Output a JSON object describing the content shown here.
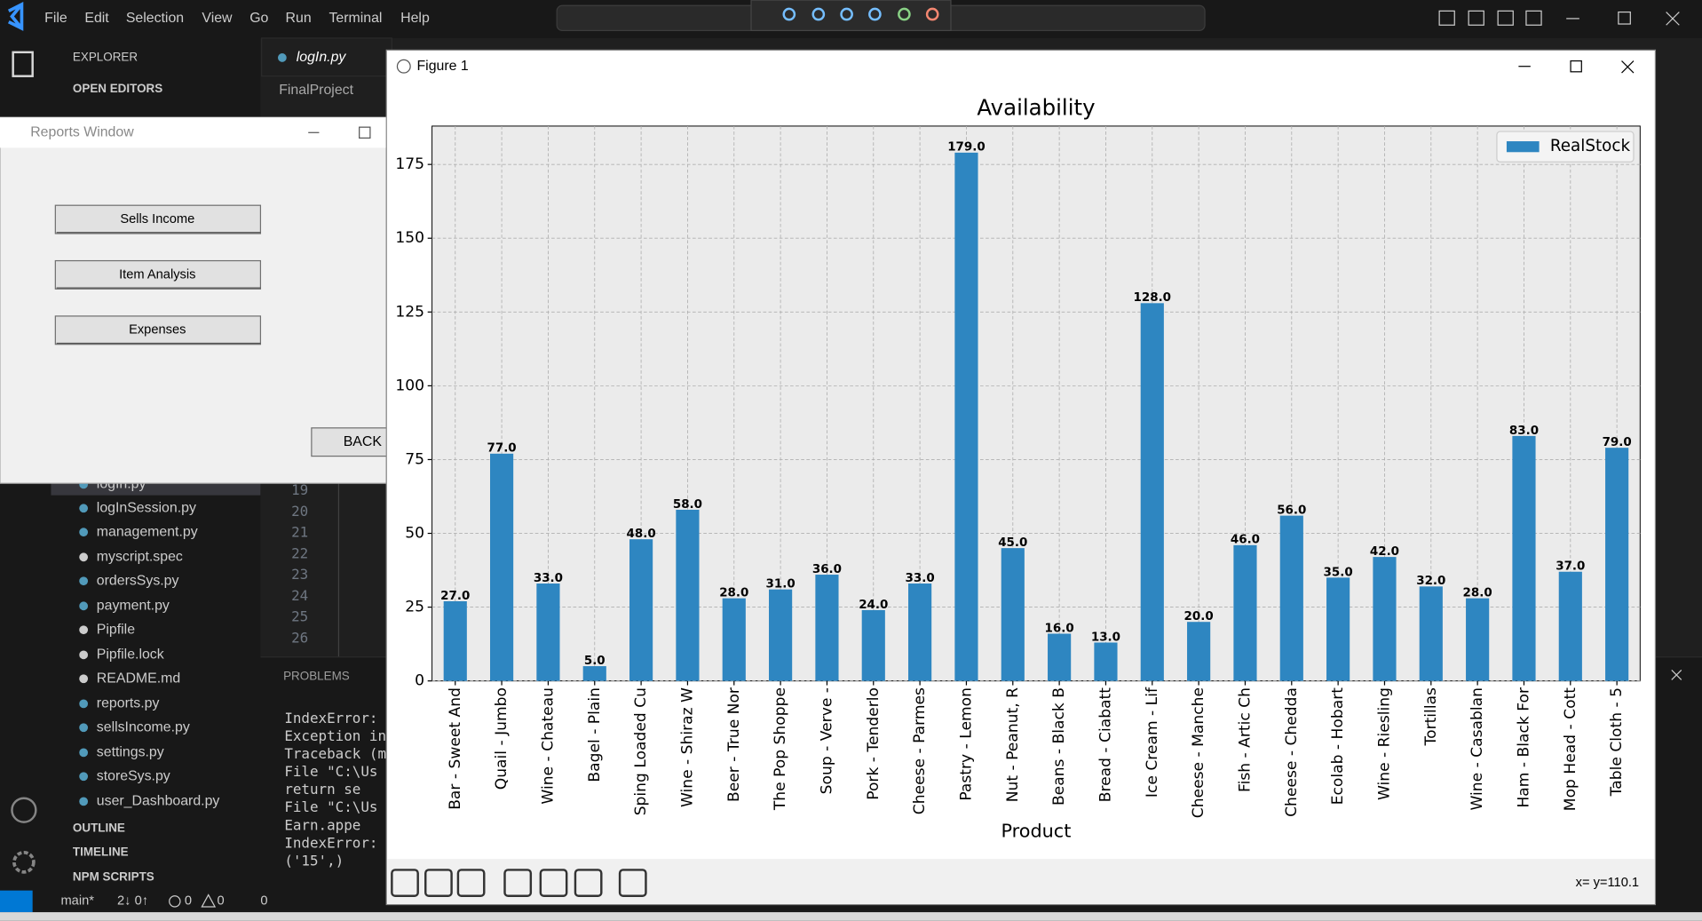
{
  "menu": [
    "File",
    "Edit",
    "Selection",
    "View",
    "Go",
    "Run",
    "Terminal",
    "Help"
  ],
  "explorer": {
    "title": "EXPLORER",
    "open_editors": "OPEN EDITORS",
    "files": [
      "logIn.py",
      "logInSession.py",
      "management.py",
      "myscript.spec",
      "ordersSys.py",
      "payment.py",
      "Pipfile",
      "Pipfile.lock",
      "README.md",
      "reports.py",
      "sellsIncome.py",
      "settings.py",
      "storeSys.py",
      "user_Dashboard.py"
    ],
    "sections": [
      "OUTLINE",
      "TIMELINE",
      "NPM SCRIPTS"
    ]
  },
  "editor": {
    "tab": "logIn.py",
    "breadcrumb": "FinalProject",
    "line_numbers": [
      19,
      20,
      21,
      22,
      23,
      24,
      25,
      26
    ]
  },
  "panel": {
    "tab": "PROBLEMS",
    "terminal": [
      "IndexError: l",
      "Exception in",
      "Traceback (mo",
      "  File \"C:\\Us",
      "    return se",
      "  File \"C:\\Us",
      "    Earn.appe",
      "IndexError: l",
      "('15',)"
    ]
  },
  "status_bar": {
    "branch": "main*",
    "sync": "2↓ 0↑",
    "errors": "0",
    "warnings": "0",
    "ports": "0"
  },
  "reports_window": {
    "title": "Reports Window",
    "buttons": [
      "Sells Income",
      "Item Analysis",
      "Expenses"
    ],
    "back": "BACK"
  },
  "figure_window": {
    "title": "Figure 1",
    "cursor": "x= y=110.1"
  },
  "chart_data": {
    "type": "bar",
    "title": "Availability",
    "x_label": "Product",
    "categories": [
      "Bar - Sweet And",
      "Quail - Jumbo",
      "Wine - Chateau",
      "Bagel - Plain",
      "Sping Loaded Cu",
      "Wine - Shiraz W",
      "Beer - True Nor",
      "The Pop Shoppe",
      "Soup - Verve -",
      "Pork - Tenderlo",
      "Cheese - Parmes",
      "Pastry - Lemon",
      "Nut - Peanut, R",
      "Beans - Black B",
      "Bread - Ciabatt",
      "Ice Cream - Lif",
      "Cheese - Manche",
      "Fish - Artic Ch",
      "Cheese - Chedda",
      "Ecolab - Hobart",
      "Wine - Riesling",
      "Tortillas",
      "Wine - Casablan",
      "Ham - Black For",
      "Mop Head - Cott",
      "Table Cloth - 5"
    ],
    "series": [
      {
        "name": "RealStock",
        "color": "#2e86c1",
        "values": [
          27,
          77,
          33,
          5,
          48,
          58,
          28,
          31,
          36,
          24,
          33,
          179,
          45,
          16,
          13,
          128,
          20,
          46,
          56,
          35,
          42,
          32,
          28,
          83,
          37,
          79
        ],
        "value_labels": [
          "27.0",
          "77.0",
          "33.0",
          "5.0",
          "48.0",
          "58.0",
          "28.0",
          "31.0",
          "36.0",
          "24.0",
          "33.0",
          "179.0",
          "45.0",
          "16.0",
          "13.0",
          "128.0",
          "20.0",
          "46.0",
          "56.0",
          "35.0",
          "42.0",
          "32.0",
          "28.0",
          "83.0",
          "37.0",
          "79.0"
        ]
      }
    ],
    "ylim": [
      0,
      188
    ],
    "yticks": [
      0,
      25,
      50,
      75,
      100,
      125,
      150,
      175
    ],
    "grid": true,
    "legend": "upper right"
  }
}
